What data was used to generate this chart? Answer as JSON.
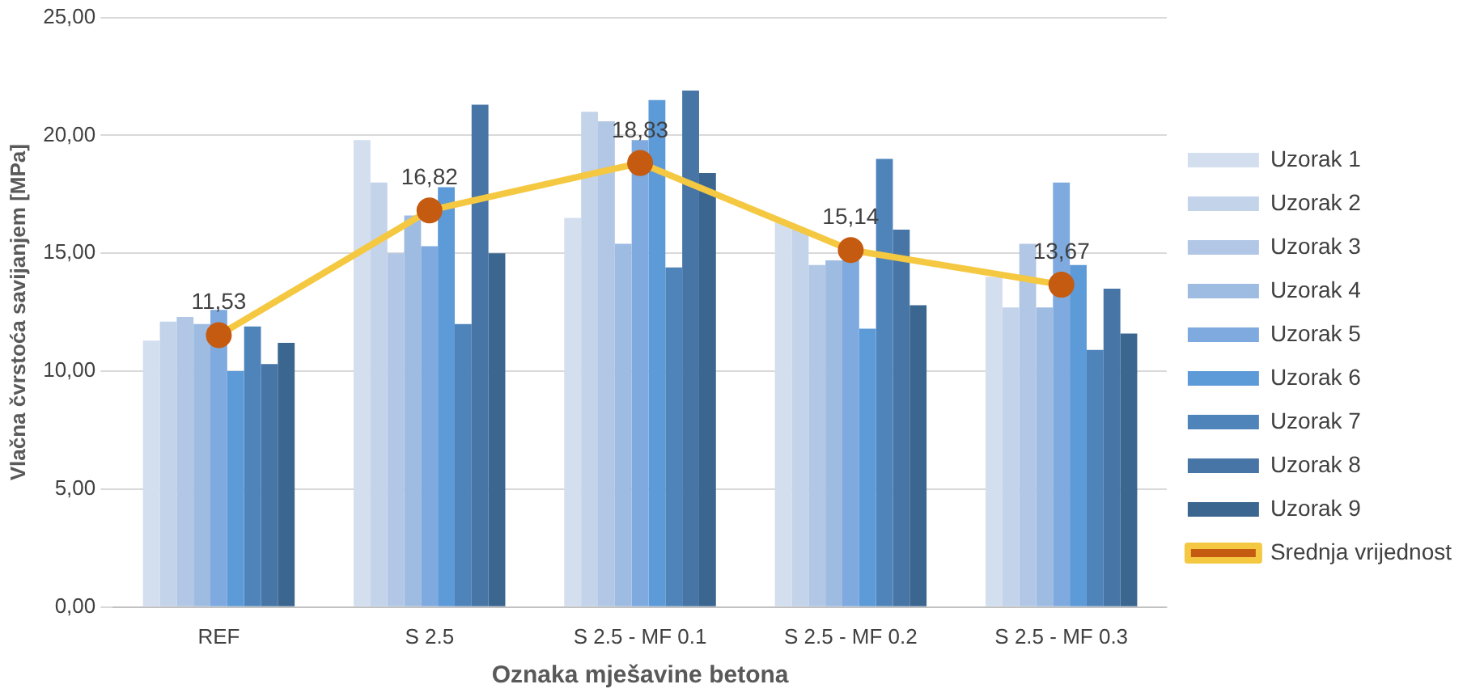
{
  "chart_data": {
    "type": "bar",
    "xlabel": "Oznaka mješavine betona",
    "ylabel": "Vlačna čvrstoća savijanjem [MPa]",
    "categories": [
      "REF",
      "S 2.5",
      "S 2.5 - MF 0.1",
      "S 2.5 - MF 0.2",
      "S 2.5 - MF 0.3"
    ],
    "ylim": [
      0,
      25
    ],
    "yticks": [
      {
        "value": 0,
        "label": "0,00"
      },
      {
        "value": 5,
        "label": "5,00"
      },
      {
        "value": 10,
        "label": "10,00"
      },
      {
        "value": 15,
        "label": "15,00"
      },
      {
        "value": 20,
        "label": "20,00"
      },
      {
        "value": 25,
        "label": "25,00"
      }
    ],
    "grid": "y",
    "legend": "right",
    "series": [
      {
        "name": "Uzorak 1",
        "color": "#d3deef",
        "values": [
          11.3,
          19.8,
          16.5,
          16.3,
          14.0
        ]
      },
      {
        "name": "Uzorak 2",
        "color": "#c3d3ea",
        "values": [
          12.1,
          18.0,
          21.0,
          16.0,
          12.7
        ]
      },
      {
        "name": "Uzorak 3",
        "color": "#b1c7e5",
        "values": [
          12.3,
          15.0,
          20.6,
          14.5,
          15.4
        ]
      },
      {
        "name": "Uzorak 4",
        "color": "#9ebbe2",
        "values": [
          12.0,
          16.6,
          15.4,
          14.7,
          12.7
        ]
      },
      {
        "name": "Uzorak 5",
        "color": "#7eaadf",
        "values": [
          12.6,
          15.3,
          19.8,
          14.7,
          18.0
        ]
      },
      {
        "name": "Uzorak 6",
        "color": "#5d9ad8",
        "values": [
          10.0,
          17.8,
          21.5,
          11.8,
          14.5
        ]
      },
      {
        "name": "Uzorak 7",
        "color": "#4f84bb",
        "values": [
          11.9,
          12.0,
          14.4,
          19.0,
          10.9
        ]
      },
      {
        "name": "Uzorak 8",
        "color": "#4675a6",
        "values": [
          10.3,
          21.3,
          21.9,
          16.0,
          13.5
        ]
      },
      {
        "name": "Uzorak 9",
        "color": "#3b6690",
        "values": [
          11.2,
          15.0,
          18.4,
          12.8,
          11.6
        ]
      },
      {
        "name": "Srednja vrijednost",
        "type": "line",
        "color": "#f5c842",
        "marker": "circle",
        "values": [
          11.53,
          16.82,
          18.83,
          15.14,
          13.67
        ],
        "value_labels": [
          "11,53",
          "16,82",
          "18,83",
          "15,14",
          "13,67"
        ]
      }
    ]
  }
}
